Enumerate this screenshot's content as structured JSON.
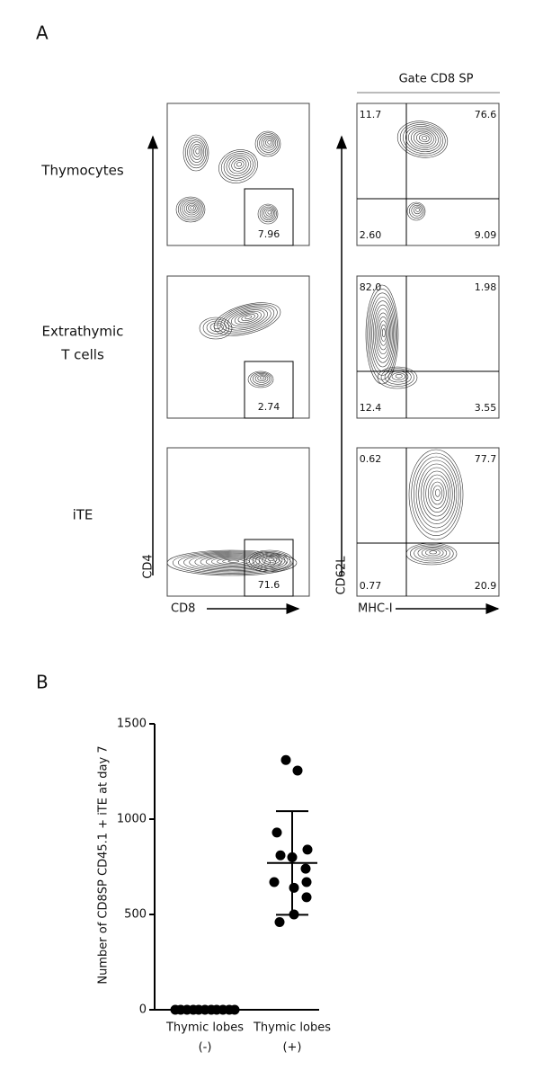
{
  "panel_a": {
    "label": "A",
    "gate_title": "Gate CD8 SP",
    "rows": [
      {
        "label_lines": [
          "Thymocytes"
        ],
        "gate_value": "7.96",
        "quadrants": [
          "11.7",
          "76.6",
          "2.60",
          "9.09"
        ]
      },
      {
        "label_lines": [
          "Extrathymic",
          "T cells"
        ],
        "gate_value": "2.74",
        "quadrants": [
          "82.0",
          "1.98",
          "12.4",
          "3.55"
        ]
      },
      {
        "label_lines": [
          "iTE"
        ],
        "gate_value": "71.6",
        "quadrants": [
          "0.62",
          "77.7",
          "0.77",
          "20.9"
        ]
      }
    ],
    "left_axes": {
      "y": "CD4",
      "x": "CD8"
    },
    "right_axes": {
      "y": "CD62L",
      "x": "MHC-I"
    }
  },
  "chart_data": {
    "type": "dot",
    "label": "B",
    "ylabel": "Number of CD8SP CD45.1 + iTE at day 7",
    "categories": [
      [
        "Thymic lobes",
        "(-)"
      ],
      [
        "Thymic lobes",
        "(+)"
      ]
    ],
    "groups": [
      {
        "values": [
          0,
          0,
          0,
          0,
          0,
          0,
          0,
          0,
          0,
          0,
          0
        ]
      },
      {
        "values": [
          1310,
          1255,
          930,
          840,
          810,
          800,
          740,
          670,
          670,
          640,
          590,
          500,
          460
        ],
        "mean": 770,
        "sd": 272
      }
    ],
    "color": "#000000",
    "ylim": [
      0,
      1500
    ],
    "yticks": [
      0,
      500,
      1000,
      1500
    ]
  }
}
